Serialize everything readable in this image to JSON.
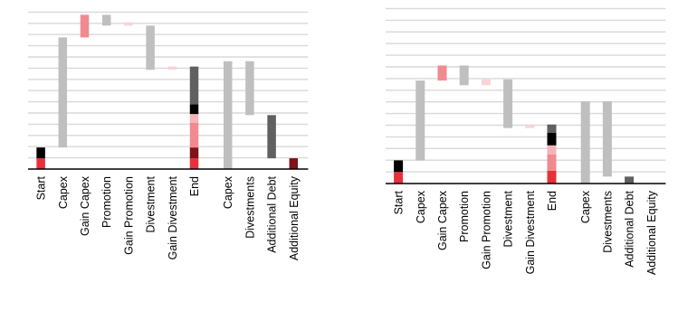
{
  "colors": {
    "grid": "#d9d9d9",
    "axis": "#000000",
    "grey": "#bfbfbf",
    "dark_grey": "#606060",
    "black": "#000000",
    "red": "#e8303a",
    "dark_red": "#7f1118",
    "pink": "#f08a8f",
    "light_pink": "#f5b4b8",
    "pale_pink": "#f9d3d5"
  },
  "chart_data": [
    {
      "type": "bar",
      "subtype": "waterfall",
      "title": "",
      "xlabel": "",
      "ylabel": "",
      "grid": true,
      "ylim": [
        0,
        15
      ],
      "categories": [
        "Start",
        "Capex",
        "Gain Capex",
        "Promotion",
        "Gain Promotion",
        "Divestment",
        "Gain Divestment",
        "End",
        "Capex",
        "Divestments",
        "Additional Debt",
        "Additional Equity"
      ],
      "bars": [
        {
          "category": "Start",
          "segments": [
            {
              "from": 0,
              "to": 1,
              "color": "red"
            },
            {
              "from": 1,
              "to": 2,
              "color": "black"
            }
          ]
        },
        {
          "category": "Capex",
          "segments": [
            {
              "from": 2,
              "to": 12.2,
              "color": "grey"
            }
          ]
        },
        {
          "category": "Gain Capex",
          "segments": [
            {
              "from": 12.2,
              "to": 14.3,
              "color": "pink"
            }
          ]
        },
        {
          "category": "Promotion",
          "segments": [
            {
              "from": 13.3,
              "to": 14.3,
              "color": "grey"
            }
          ]
        },
        {
          "category": "Gain Promotion",
          "segments": [
            {
              "from": 13.3,
              "to": 13.6,
              "color": "pale_pink"
            }
          ]
        },
        {
          "category": "Divestment",
          "segments": [
            {
              "from": 9.2,
              "to": 13.3,
              "color": "grey"
            }
          ]
        },
        {
          "category": "Gain Divestment",
          "segments": [
            {
              "from": 9.2,
              "to": 9.5,
              "color": "pale_pink"
            }
          ]
        },
        {
          "category": "End",
          "segments": [
            {
              "from": 0,
              "to": 1,
              "color": "red"
            },
            {
              "from": 1,
              "to": 2,
              "color": "dark_red"
            },
            {
              "from": 2,
              "to": 4.3,
              "color": "pink"
            },
            {
              "from": 4.3,
              "to": 5.1,
              "color": "light_pink"
            },
            {
              "from": 5.1,
              "to": 6,
              "color": "black"
            },
            {
              "from": 6,
              "to": 9.5,
              "color": "dark_grey"
            }
          ]
        },
        {
          "category": "Capex",
          "gap_before": true,
          "segments": [
            {
              "from": 0,
              "to": 10,
              "color": "grey"
            }
          ]
        },
        {
          "category": "Divestments",
          "segments": [
            {
              "from": 5,
              "to": 10,
              "color": "grey"
            }
          ]
        },
        {
          "category": "Additional Debt",
          "segments": [
            {
              "from": 1,
              "to": 5,
              "color": "dark_grey"
            }
          ]
        },
        {
          "category": "Additional Equity",
          "segments": [
            {
              "from": 0,
              "to": 1,
              "color": "dark_red"
            }
          ]
        }
      ]
    },
    {
      "type": "bar",
      "subtype": "waterfall",
      "title": "",
      "xlabel": "",
      "ylabel": "",
      "grid": true,
      "ylim": [
        0,
        15
      ],
      "categories": [
        "Start",
        "Capex",
        "Gain Capex",
        "Promotion",
        "Gain Promotion",
        "Divestment",
        "Gain Divestment",
        "End",
        "Capex",
        "Divestments",
        "Additional Debt",
        "Additional Equity"
      ],
      "bars": [
        {
          "category": "Start",
          "segments": [
            {
              "from": 0,
              "to": 1,
              "color": "red"
            },
            {
              "from": 1,
              "to": 2,
              "color": "black"
            }
          ]
        },
        {
          "category": "Capex",
          "segments": [
            {
              "from": 2,
              "to": 8.9,
              "color": "grey"
            }
          ]
        },
        {
          "category": "Gain Capex",
          "segments": [
            {
              "from": 8.9,
              "to": 10.2,
              "color": "pink"
            }
          ]
        },
        {
          "category": "Promotion",
          "segments": [
            {
              "from": 8.5,
              "to": 10.2,
              "color": "grey"
            }
          ]
        },
        {
          "category": "Gain Promotion",
          "segments": [
            {
              "from": 8.5,
              "to": 9.0,
              "color": "pale_pink"
            }
          ]
        },
        {
          "category": "Divestment",
          "segments": [
            {
              "from": 4.8,
              "to": 9.0,
              "color": "grey"
            }
          ]
        },
        {
          "category": "Gain Divestment",
          "segments": [
            {
              "from": 4.8,
              "to": 5.1,
              "color": "pale_pink"
            }
          ]
        },
        {
          "category": "End",
          "segments": [
            {
              "from": 0,
              "to": 1.1,
              "color": "red"
            },
            {
              "from": 1.1,
              "to": 2.5,
              "color": "pink"
            },
            {
              "from": 2.5,
              "to": 3.3,
              "color": "light_pink"
            },
            {
              "from": 3.3,
              "to": 4.4,
              "color": "black"
            },
            {
              "from": 4.4,
              "to": 5.1,
              "color": "dark_grey"
            }
          ]
        },
        {
          "category": "Capex",
          "gap_before": true,
          "segments": [
            {
              "from": 0,
              "to": 7.1,
              "color": "grey"
            }
          ]
        },
        {
          "category": "Divestments",
          "segments": [
            {
              "from": 0.6,
              "to": 7.1,
              "color": "grey"
            }
          ]
        },
        {
          "category": "Additional Debt",
          "segments": [
            {
              "from": 0,
              "to": 0.6,
              "color": "dark_grey"
            }
          ]
        },
        {
          "category": "Additional Equity",
          "segments": []
        }
      ]
    }
  ]
}
